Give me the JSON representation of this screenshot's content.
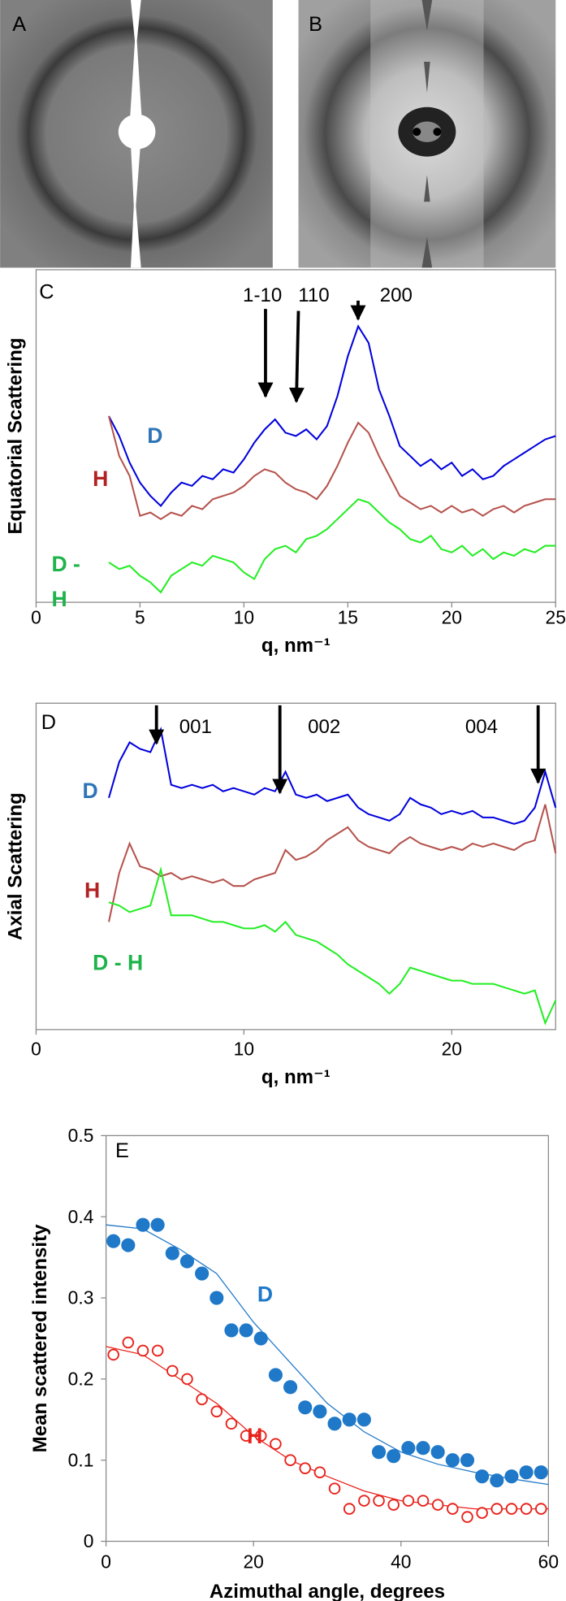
{
  "image_labels": [
    "A",
    "B"
  ],
  "chart_data": [
    {
      "type": "line",
      "panel_label": "C",
      "y_label": "Equatorial Scattering",
      "x_label": "q, nm⁻¹",
      "xlim": [
        0,
        25
      ],
      "xticks": [
        0,
        5,
        10,
        15,
        20,
        25
      ],
      "ylim": [
        0,
        100
      ],
      "annotations": [
        "1-10",
        "110",
        "200"
      ],
      "x": [
        3.5,
        4,
        4.5,
        5,
        5.5,
        6,
        6.5,
        7,
        7.5,
        8,
        8.5,
        9,
        9.5,
        10,
        10.5,
        11,
        11.5,
        12,
        12.5,
        13,
        13.5,
        14,
        14.5,
        15,
        15.5,
        16,
        16.5,
        17,
        17.5,
        18,
        18.5,
        19,
        19.5,
        20,
        20.5,
        21,
        21.5,
        22,
        22.5,
        23,
        23.5,
        24,
        24.5,
        25
      ],
      "series": [
        {
          "name": "D",
          "color": "#0000dd",
          "label_color": "#2e75b6",
          "values": [
            56,
            50,
            42,
            36,
            32,
            29,
            33,
            36,
            35,
            38,
            37,
            40,
            39,
            43,
            48,
            52,
            55,
            51,
            50,
            52,
            49,
            53,
            62,
            74,
            83,
            78,
            64,
            56,
            47,
            44,
            41,
            43,
            40,
            42,
            38,
            40,
            37,
            38,
            41,
            43,
            45,
            47,
            49,
            50
          ]
        },
        {
          "name": "H",
          "color": "#b5524c",
          "label_color": "#b22222",
          "values": [
            56,
            44,
            38,
            26,
            27,
            25,
            27,
            26,
            29,
            28,
            31,
            32,
            33,
            35,
            38,
            40,
            39,
            36,
            34,
            33,
            31,
            35,
            41,
            48,
            54,
            51,
            44,
            38,
            32,
            30,
            28,
            29,
            27,
            29,
            27,
            28,
            26,
            28,
            29,
            27,
            29,
            30,
            31,
            31
          ]
        },
        {
          "name": "D - H",
          "color": "#22ee22",
          "label_color": "#1fb34b",
          "values": [
            12,
            10,
            11,
            8,
            6,
            3,
            8,
            10,
            12,
            11,
            14,
            13,
            12,
            9,
            7,
            13,
            16,
            17,
            15,
            19,
            20,
            22,
            25,
            28,
            31,
            30,
            27,
            24,
            22,
            19,
            18,
            20,
            16,
            15,
            17,
            14,
            16,
            13,
            15,
            14,
            16,
            15,
            17,
            17
          ]
        }
      ]
    },
    {
      "type": "line",
      "panel_label": "D",
      "y_label": "Axial Scattering",
      "x_label": "q, nm⁻¹",
      "xlim": [
        0,
        25
      ],
      "xticks": [
        0,
        10,
        20
      ],
      "ylim": [
        0,
        100
      ],
      "annotations": [
        "001",
        "002",
        "004"
      ],
      "x": [
        3.5,
        4,
        4.5,
        5,
        5.5,
        6,
        6.5,
        7,
        7.5,
        8,
        8.5,
        9,
        9.5,
        10,
        10.5,
        11,
        11.5,
        12,
        12.5,
        13,
        13.5,
        14,
        14.5,
        15,
        15.5,
        16,
        16.5,
        17,
        17.5,
        18,
        18.5,
        19,
        19.5,
        20,
        20.5,
        21,
        21.5,
        22,
        22.5,
        23,
        23.5,
        24,
        24.5,
        25
      ],
      "series": [
        {
          "name": "D",
          "color": "#0000dd",
          "label_color": "#2e75b6",
          "values": [
            71,
            82,
            88,
            86,
            85,
            92,
            75,
            74,
            75,
            74,
            75,
            73,
            74,
            73,
            72,
            74,
            73,
            79,
            72,
            71,
            72,
            70,
            71,
            72,
            68,
            66,
            65,
            64,
            66,
            71,
            69,
            68,
            66,
            67,
            66,
            67,
            65,
            65,
            64,
            63,
            64,
            68,
            79,
            68
          ]
        },
        {
          "name": "H",
          "color": "#b5524c",
          "label_color": "#b22222",
          "values": [
            33,
            48,
            57,
            50,
            49,
            47,
            48,
            46,
            47,
            46,
            45,
            46,
            44,
            44,
            46,
            47,
            48,
            55,
            52,
            53,
            55,
            58,
            60,
            62,
            58,
            56,
            55,
            54,
            57,
            59,
            57,
            56,
            55,
            56,
            55,
            57,
            56,
            57,
            56,
            55,
            57,
            58,
            69,
            54
          ]
        },
        {
          "name": "D - H",
          "color": "#22ee22",
          "label_color": "#1fb34b",
          "values": [
            39,
            38,
            36,
            37,
            38,
            49,
            35,
            35,
            35,
            34,
            33,
            33,
            32,
            31,
            31,
            32,
            30,
            33,
            29,
            28,
            27,
            25,
            23,
            20,
            18,
            16,
            14,
            11,
            14,
            19,
            18,
            17,
            16,
            15,
            15,
            14,
            14,
            14,
            13,
            12,
            11,
            12,
            2,
            9
          ]
        }
      ]
    },
    {
      "type": "scatter",
      "panel_label": "E",
      "y_label": "Mean scattered intensity",
      "x_label": "Azimuthal angle, degrees",
      "xlim": [
        0,
        60
      ],
      "xticks": [
        0,
        20,
        40,
        60
      ],
      "ylim": [
        0,
        0.5
      ],
      "yticks": [
        0,
        0.1,
        0.2,
        0.3,
        0.4,
        0.5
      ],
      "x": [
        1,
        3,
        5,
        7,
        9,
        11,
        13,
        15,
        17,
        19,
        21,
        23,
        25,
        27,
        29,
        31,
        33,
        35,
        37,
        39,
        41,
        43,
        45,
        47,
        49,
        51,
        53,
        55,
        57,
        59
      ],
      "series": [
        {
          "name": "D",
          "color": "#1f78c8",
          "marker": "filled",
          "values": [
            0.37,
            0.365,
            0.39,
            0.39,
            0.355,
            0.345,
            0.33,
            0.3,
            0.26,
            0.26,
            0.25,
            0.205,
            0.19,
            0.165,
            0.16,
            0.145,
            0.15,
            0.15,
            0.11,
            0.105,
            0.115,
            0.115,
            0.11,
            0.1,
            0.1,
            0.08,
            0.075,
            0.08,
            0.085,
            0.085
          ],
          "fit_x": [
            0,
            5,
            10,
            15,
            20,
            25,
            30,
            35,
            40,
            45,
            50,
            55,
            60
          ],
          "fit": [
            0.39,
            0.385,
            0.36,
            0.33,
            0.27,
            0.22,
            0.17,
            0.135,
            0.11,
            0.095,
            0.085,
            0.077,
            0.07
          ]
        },
        {
          "name": "H",
          "color": "#e8221b",
          "marker": "open",
          "values": [
            0.23,
            0.245,
            0.235,
            0.235,
            0.21,
            0.2,
            0.175,
            0.16,
            0.145,
            0.13,
            0.13,
            0.12,
            0.1,
            0.09,
            0.085,
            0.065,
            0.04,
            0.05,
            0.05,
            0.045,
            0.05,
            0.05,
            0.045,
            0.04,
            0.03,
            0.035,
            0.04,
            0.04,
            0.04,
            0.04
          ],
          "fit_x": [
            0,
            5,
            10,
            15,
            20,
            25,
            30,
            35,
            40,
            45,
            50,
            55,
            60
          ],
          "fit": [
            0.24,
            0.23,
            0.2,
            0.17,
            0.13,
            0.1,
            0.08,
            0.062,
            0.05,
            0.045,
            0.04,
            0.04,
            0.04
          ]
        }
      ]
    }
  ]
}
